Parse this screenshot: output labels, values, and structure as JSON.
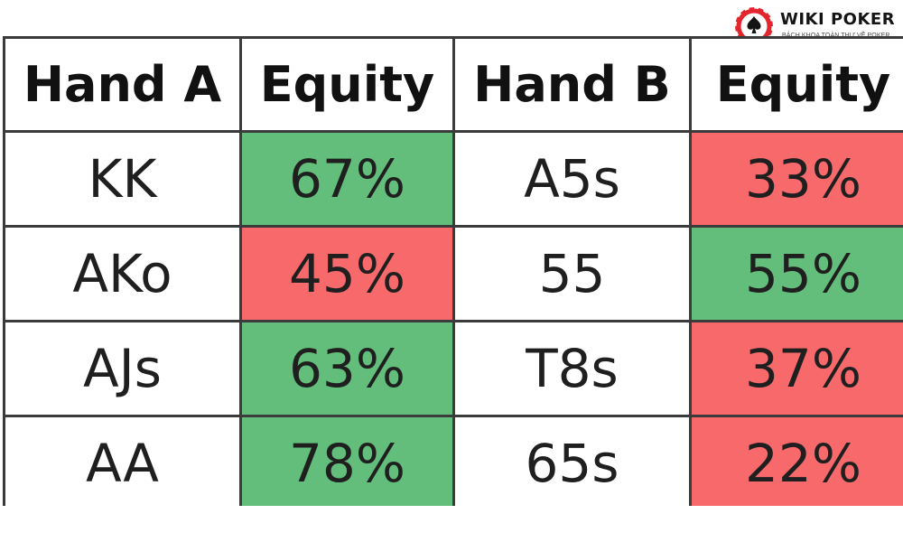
{
  "logo": {
    "title": "WIKI POKER",
    "subtitle": "BÁCH KHOA TOÀN THƯ VỀ POKER",
    "colors": {
      "red": "#e3262e",
      "dark": "#141414"
    },
    "icon": "spade-poker-chip-icon"
  },
  "table": {
    "headers": [
      "Hand A",
      "Equity",
      "Hand B",
      "Equity"
    ],
    "colors": {
      "win": "#63be7b",
      "lose": "#f8696b",
      "border": "#3b3b3b"
    },
    "rows": [
      {
        "hand_a": "KK",
        "equity_a": "67%",
        "equity_a_status": "green",
        "hand_b": "A5s",
        "equity_b": "33%",
        "equity_b_status": "red"
      },
      {
        "hand_a": "AKo",
        "equity_a": "45%",
        "equity_a_status": "red",
        "hand_b": "55",
        "equity_b": "55%",
        "equity_b_status": "green"
      },
      {
        "hand_a": "AJs",
        "equity_a": "63%",
        "equity_a_status": "green",
        "hand_b": "T8s",
        "equity_b": "37%",
        "equity_b_status": "red"
      },
      {
        "hand_a": "AA",
        "equity_a": "78%",
        "equity_a_status": "green",
        "hand_b": "65s",
        "equity_b": "22%",
        "equity_b_status": "red"
      }
    ]
  }
}
